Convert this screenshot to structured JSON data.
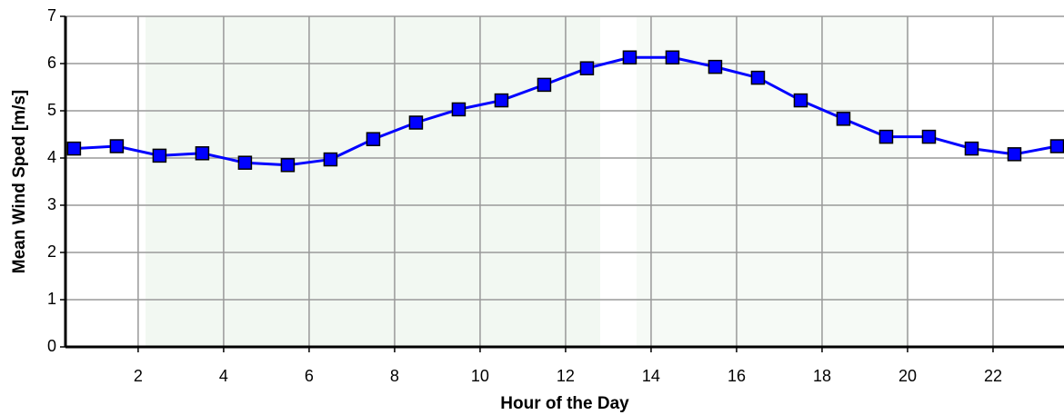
{
  "chart_data": {
    "type": "line",
    "x_label": "Hour of the Day",
    "y_label": "Mean Wind Sped [m/s]",
    "x": [
      0.5,
      1.5,
      2.5,
      3.5,
      4.5,
      5.5,
      6.5,
      7.5,
      8.5,
      9.5,
      10.5,
      11.5,
      12.5,
      13.5,
      14.5,
      15.5,
      16.5,
      17.5,
      18.5,
      19.5,
      20.5,
      21.5,
      22.5,
      23.5
    ],
    "series": [
      {
        "color": "#0000ff",
        "values": [
          4.2,
          4.25,
          4.05,
          4.1,
          3.9,
          3.85,
          3.97,
          4.4,
          4.75,
          5.03,
          5.22,
          5.55,
          5.9,
          6.13,
          6.13,
          5.93,
          5.7,
          5.22,
          4.83,
          4.45,
          4.45,
          4.2,
          4.08,
          4.25
        ]
      }
    ],
    "xlim": [
      0.3,
      23.66
    ],
    "xticks": [
      2,
      4,
      6,
      8,
      10,
      12,
      14,
      16,
      18,
      20,
      22
    ],
    "ylim": [
      0,
      7
    ],
    "yticks": [
      0,
      1,
      2,
      3,
      4,
      5,
      6,
      7
    ],
    "grid": true
  }
}
